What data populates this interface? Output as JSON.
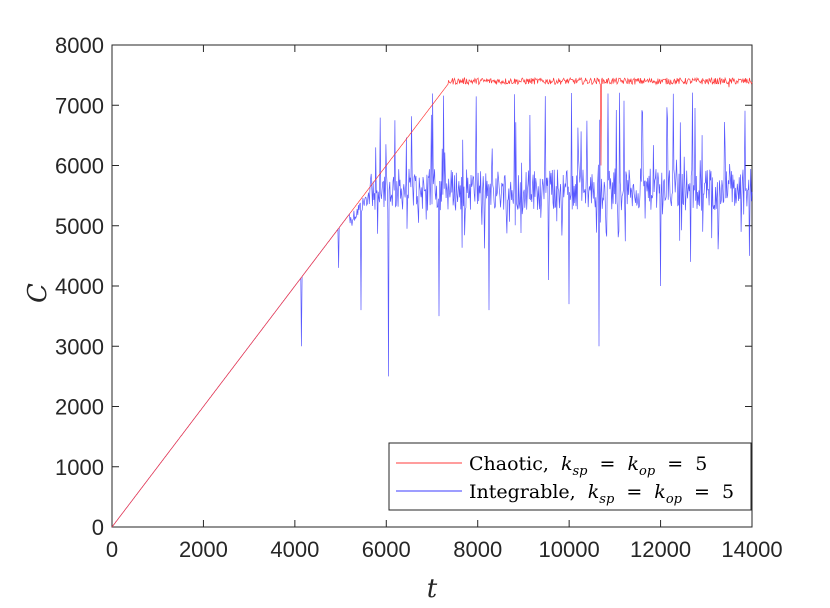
{
  "chart_data": {
    "type": "line",
    "title": "",
    "xlabel": "t",
    "ylabel": "C",
    "xlim": [
      0,
      14000
    ],
    "ylim": [
      0,
      8000
    ],
    "xticks": [
      0,
      2000,
      4000,
      6000,
      8000,
      10000,
      12000,
      14000
    ],
    "yticks": [
      0,
      1000,
      2000,
      3000,
      4000,
      5000,
      6000,
      7000,
      8000
    ],
    "grid": false,
    "legend_position": "bottom-right",
    "series": [
      {
        "name": "Chaotic, k_sp = k_op = 5",
        "legend_prefix": "Chaotic,",
        "color": "#ff3b3b",
        "ramp_end": [
          7350,
          7350
        ],
        "plateau_mean": 7400,
        "plateau_noise": 55,
        "dips": [
          [
            10700,
            6000
          ],
          [
            13500,
            7300
          ]
        ]
      },
      {
        "name": "Integrable, k_sp = k_op = 5",
        "legend_prefix": "Integrable,",
        "color": "#3b3bff",
        "ramp_end": [
          5600,
          5600
        ],
        "plateau_mean": 5600,
        "plateau_noise": 350,
        "dips": [
          [
            4150,
            3000
          ],
          [
            4950,
            4300
          ],
          [
            5450,
            3600
          ],
          [
            6050,
            2500
          ],
          [
            7150,
            3500
          ],
          [
            8250,
            3600
          ],
          [
            9550,
            4100
          ],
          [
            10000,
            3700
          ],
          [
            10650,
            3000
          ],
          [
            12000,
            4000
          ],
          [
            12650,
            4400
          ],
          [
            13950,
            4500
          ]
        ]
      }
    ],
    "legend_symbols": {
      "k": "k",
      "sp": "sp",
      "op": "op",
      "eq": "=",
      "value": "5"
    }
  }
}
